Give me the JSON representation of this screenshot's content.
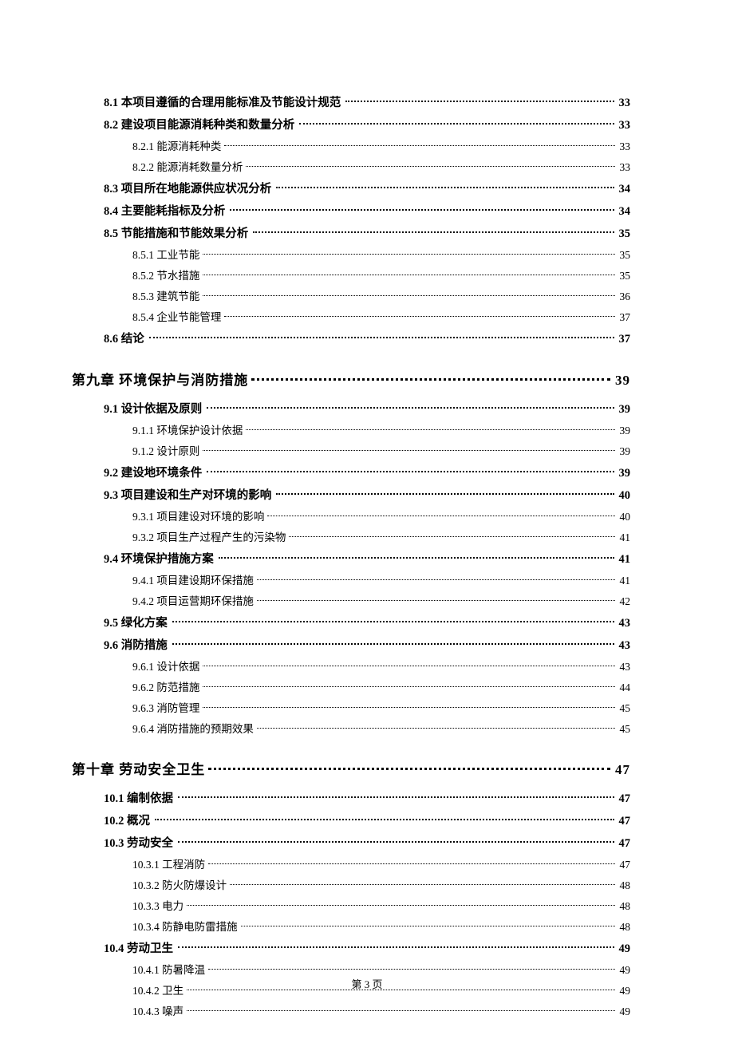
{
  "footer": "第 3 页",
  "entries": [
    {
      "level": 2,
      "label": "8.1 本项目遵循的合理用能标准及节能设计规范",
      "page": "33"
    },
    {
      "level": 2,
      "label": "8.2 建设项目能源消耗种类和数量分析",
      "page": "33"
    },
    {
      "level": 3,
      "label": "8.2.1 能源消耗种类",
      "page": "33"
    },
    {
      "level": 3,
      "label": "8.2.2 能源消耗数量分析",
      "page": "33"
    },
    {
      "level": 2,
      "label": "8.3 项目所在地能源供应状况分析",
      "page": "34"
    },
    {
      "level": 2,
      "label": "8.4 主要能耗指标及分析",
      "page": "34"
    },
    {
      "level": 2,
      "label": "8.5 节能措施和节能效果分析",
      "page": "35"
    },
    {
      "level": 3,
      "label": "8.5.1 工业节能",
      "page": "35"
    },
    {
      "level": 3,
      "label": "8.5.2 节水措施",
      "page": "35"
    },
    {
      "level": 3,
      "label": "8.5.3 建筑节能",
      "page": "36"
    },
    {
      "level": 3,
      "label": "8.5.4 企业节能管理",
      "page": "37"
    },
    {
      "level": 2,
      "label": "8.6 结论",
      "page": "37"
    },
    {
      "level": 1,
      "label": "第九章  环境保护与消防措施",
      "page": "39"
    },
    {
      "level": 2,
      "label": "9.1 设计依据及原则",
      "page": "39"
    },
    {
      "level": 3,
      "label": "9.1.1 环境保护设计依据",
      "page": "39"
    },
    {
      "level": 3,
      "label": "9.1.2 设计原则",
      "page": "39"
    },
    {
      "level": 2,
      "label": "9.2 建设地环境条件",
      "page": "39"
    },
    {
      "level": 2,
      "label": "9.3  项目建设和生产对环境的影响",
      "page": "40"
    },
    {
      "level": 3,
      "label": "9.3.1  项目建设对环境的影响",
      "page": "40"
    },
    {
      "level": 3,
      "label": "9.3.2 项目生产过程产生的污染物",
      "page": "41"
    },
    {
      "level": 2,
      "label": "9.4  环境保护措施方案",
      "page": "41"
    },
    {
      "level": 3,
      "label": "9.4.1  项目建设期环保措施",
      "page": "41"
    },
    {
      "level": 3,
      "label": "9.4.2  项目运营期环保措施",
      "page": "42"
    },
    {
      "level": 2,
      "label": "9.5 绿化方案",
      "page": "43"
    },
    {
      "level": 2,
      "label": "9.6 消防措施",
      "page": "43"
    },
    {
      "level": 3,
      "label": "9.6.1 设计依据",
      "page": "43"
    },
    {
      "level": 3,
      "label": "9.6.2 防范措施",
      "page": "44"
    },
    {
      "level": 3,
      "label": "9.6.3 消防管理",
      "page": "45"
    },
    {
      "level": 3,
      "label": "9.6.4 消防措施的预期效果",
      "page": "45"
    },
    {
      "level": 1,
      "label": "第十章  劳动安全卫生",
      "page": "47"
    },
    {
      "level": 2,
      "label": "10.1  编制依据",
      "page": "47"
    },
    {
      "level": 2,
      "label": "10.2 概况",
      "page": "47"
    },
    {
      "level": 2,
      "label": "10.3  劳动安全",
      "page": "47"
    },
    {
      "level": 3,
      "label": "10.3.1 工程消防",
      "page": "47"
    },
    {
      "level": 3,
      "label": "10.3.2 防火防爆设计",
      "page": "48"
    },
    {
      "level": 3,
      "label": "10.3.3 电力",
      "page": "48"
    },
    {
      "level": 3,
      "label": "10.3.4 防静电防雷措施",
      "page": "48"
    },
    {
      "level": 2,
      "label": "10.4 劳动卫生",
      "page": "49"
    },
    {
      "level": 3,
      "label": "10.4.1 防暑降温",
      "page": "49"
    },
    {
      "level": 3,
      "label": "10.4.2 卫生",
      "page": "49"
    },
    {
      "level": 3,
      "label": "10.4.3 噪声",
      "page": "49"
    }
  ]
}
